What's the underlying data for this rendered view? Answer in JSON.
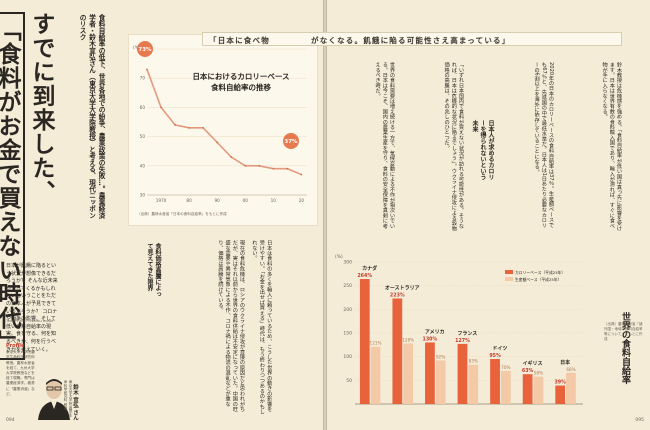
{
  "article": {
    "headline_line1": "すでに到来した、",
    "headline_line2": "「食料がお金で買えない時代」",
    "lede": "食料自給率の低下、世界各地での紛争、農業政策の失敗…。農業経済学者・鈴木宣弘さん（東京大学大学院教授）と考える、現代ニッポンのリスク",
    "intro": "日本が飢餓に陥るという状況が想像できるだろうか？ そんな近未来がやってくるかもしれないということをただの日本人が予見できているだろうか？ コロナや紛争の影響、そして低い食料自給率の現実。食を守る、何を知るべきか、何を行うべきかを考えていく。",
    "credit": "Text/Photo: Osamu Inoue",
    "profile_title": "Profile",
    "profile_text": "東京大学大学院農学生命科学研究科教授。農林水産省を経て、九州大学大学院教授などを経て現職。専門は農業経済学。著書に「農業消滅」など。",
    "author_info": "東京大学大学院 農学生命科学研究科 教授",
    "author_name": "鈴木 宣弘 さん",
    "folio_left": "094",
    "folio_right": "095"
  },
  "chart1": {
    "title_l1": "日本におけるカロリーベース",
    "title_l2": "食料自給率の推移",
    "unit": "(%)",
    "start_label": "73%",
    "end_label": "37%",
    "note": "（出典）農林水産省「日本の食料自給率」をもとに作成",
    "y_ticks": [
      "80",
      "70",
      "60",
      "50",
      "40",
      "30"
    ],
    "x_ticks": [
      "1970",
      "80",
      "90",
      "00",
      "10",
      "20"
    ]
  },
  "chart_data": [
    {
      "type": "line",
      "title": "日本におけるカロリーベース食料自給率の推移",
      "ylabel": "(%)",
      "x": [
        1965,
        1970,
        1975,
        1980,
        1985,
        1990,
        1995,
        2000,
        2005,
        2010,
        2015,
        2020
      ],
      "values": [
        73,
        60,
        54,
        53,
        53,
        48,
        43,
        40,
        40,
        39,
        39,
        37
      ],
      "ylim": [
        30,
        80
      ],
      "grid": true
    },
    {
      "type": "bar",
      "title": "世界の食料自給率",
      "ylabel": "(%)",
      "categories": [
        "カナダ",
        "オーストラリア",
        "アメリカ",
        "フランス",
        "ドイツ",
        "イギリス",
        "日本"
      ],
      "series": [
        {
          "name": "カロリーベース（平成25年）",
          "values": [
            264,
            223,
            130,
            127,
            95,
            63,
            39
          ]
        },
        {
          "name": "生産額ベース（平成25年）",
          "values": [
            121,
            128,
            92,
            83,
            70,
            58,
            66
          ]
        }
      ],
      "ylim": [
        0,
        300
      ],
      "legend": "top-right"
    }
  ],
  "chart2": {
    "unit": "(%)",
    "title": "世界の食料自給率",
    "legend_a": "カロリーベース（平成25年）",
    "legend_b": "生産額ベース（平成25年）",
    "categories": [
      "カナダ",
      "オーストラリア",
      "アメリカ",
      "フランス",
      "ドイツ",
      "イギリス",
      "日本"
    ],
    "labels_a": [
      "264%",
      "223%",
      "130%",
      "127%",
      "95%",
      "63%",
      "39%"
    ],
    "labels_b": [
      "121%",
      "128%",
      "92%",
      "83%",
      "70%",
      "58%",
      "66%"
    ],
    "y_ticks": [
      "300",
      "250",
      "200",
      "150",
      "100",
      "50"
    ],
    "note": "（出典）農林水産省「諸外国・地域の食料自給率等について」をもとに作成"
  },
  "right": {
    "pull_a": "「日本に食べ物",
    "pull_b": "がなくなる。飢餓に陥る可能性さえ高まっている」",
    "sub1": "食料価格高騰によって見えてきた限界",
    "sub2": "日本人が求めるカロリーを得られないという未来",
    "col1": "鈴木教授は危機感を強める。「食料自給率が低い国は真っ先に影響を受けます。日本は世界有数の食料輸入国であり、輸入が滞れば、すぐに食べ物が手に入らなくなる。",
    "col2": "2020年の日本のカロリーベースの食料自給率は37％。生産額ベースでも67％と、先進国の中で最低水準だ。日本人は1日あたり必要なカロリーの6割以上を海外に依存していることになる。",
    "col3": "「いずれ日本国内で食料が買えない状況が訪れる可能性がある。そうなれば、日本は危機的な状況に陥るでしょう」。ウクライナ侵攻による穀物価格の高騰は、その兆しのひとつだ。",
    "col4": "世界の食料需要は増え続ける一方で、気候変動による不作が相次いでいる。日本は今こそ、国内の農業生産を守り、食料の安全保障を真剣に考えるべき時だ。",
    "col_left": "現在の食料危機は、ロシアのウクライナ侵攻が直接の原因だと思われがちだが、実はそれ以前から世界の食料供給は不安定になっていた。中国の旺盛な需要や異常気象による不作、コロナ禍による物流の混乱などが重なり、価格は高騰を続けている。",
    "col_left2": "日本は食料の多くを輸入に頼っているため、こうした世界の動きの影響を受けやすい。「お金を出せば買える」時代は、もう終わりつつあるのかもしれない。"
  }
}
